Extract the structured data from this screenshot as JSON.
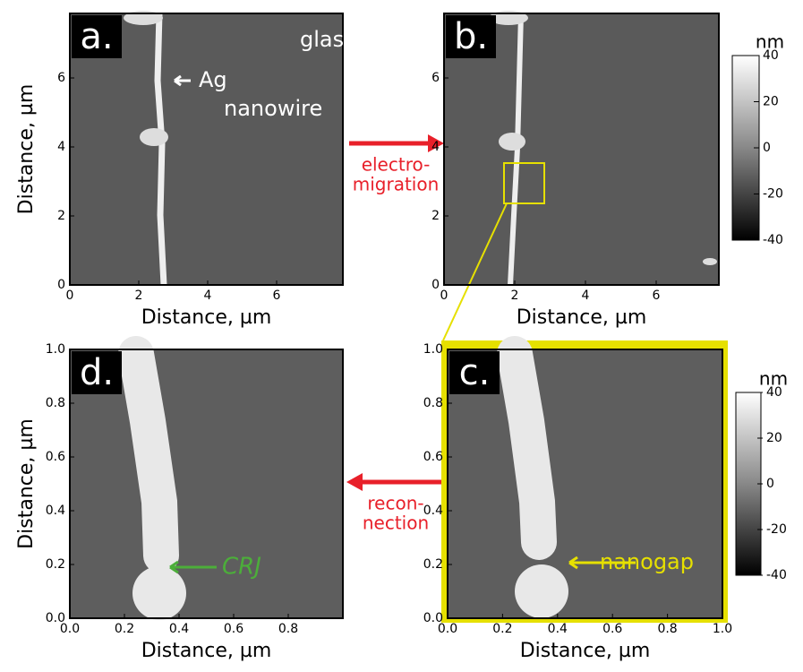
{
  "panels": [
    {
      "label": "a.",
      "x_label": "Distance, µm",
      "y_label": "Distance, µm",
      "x_ticks": [
        "0",
        "2",
        "4",
        "6"
      ],
      "y_ticks": [
        "0",
        "2",
        "4",
        "6"
      ],
      "annotations": [
        "glass",
        "Ag",
        "nanowire"
      ]
    },
    {
      "label": "b.",
      "x_label": "Distance, µm",
      "x_ticks": [
        "0",
        "2",
        "4",
        "6"
      ],
      "y_ticks": [
        "0",
        "2",
        "4",
        "6"
      ]
    },
    {
      "label": "c.",
      "x_label": "Distance, µm",
      "x_ticks": [
        "0.0",
        "0.2",
        "0.4",
        "0.6",
        "0.8",
        "1.0"
      ],
      "y_ticks": [
        "0.0",
        "0.2",
        "0.4",
        "0.6",
        "0.8",
        "1.0"
      ],
      "annotations": [
        "nanogap"
      ]
    },
    {
      "label": "d.",
      "x_label": "Distance, µm",
      "y_label": "Distance, µm",
      "x_ticks": [
        "0.0",
        "0.2",
        "0.4",
        "0.6",
        "0.8"
      ],
      "y_ticks": [
        "0.0",
        "0.2",
        "0.4",
        "0.6",
        "0.8",
        "1.0"
      ],
      "annotations": [
        "CRJ"
      ]
    }
  ],
  "colorbars": [
    {
      "unit": "nm",
      "ticks": [
        "40",
        "20",
        "0",
        "-20",
        "-40"
      ]
    },
    {
      "unit": "nm",
      "ticks": [
        "40",
        "20",
        "0",
        "-20",
        "-40"
      ]
    }
  ],
  "arrows": [
    {
      "lines": [
        "electro-",
        "migration"
      ]
    },
    {
      "lines": [
        "recon-",
        "nection"
      ]
    }
  ]
}
